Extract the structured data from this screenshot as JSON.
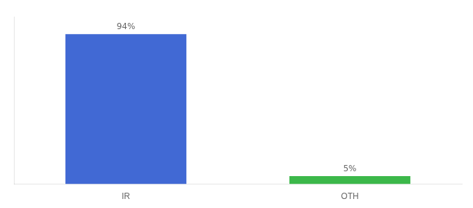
{
  "chart_data": {
    "type": "bar",
    "categories": [
      "IR",
      "OTH"
    ],
    "values": [
      94,
      5
    ],
    "colors": [
      "#4169d4",
      "#3cb84a"
    ],
    "ylim": [
      0,
      105
    ],
    "data_labels": true,
    "value_labels": [
      "94%",
      "5%"
    ],
    "tick_labels": "x",
    "grid": false
  }
}
